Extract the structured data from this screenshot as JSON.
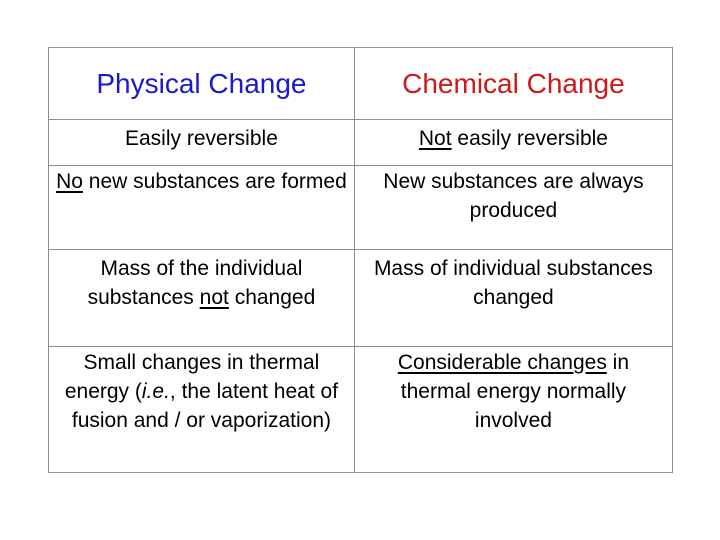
{
  "colors": {
    "physical_heading": "#1a1ac8",
    "chemical_heading": "#cc1a1a",
    "border": "#8c8c8c"
  },
  "headers": {
    "physical": "Physical Change",
    "chemical": "Chemical Change"
  },
  "rows": [
    {
      "physical": {
        "parts": [
          "Easily reversible"
        ]
      },
      "chemical": {
        "underlined": "Not",
        "rest": " easily reversible"
      }
    },
    {
      "physical": {
        "underlined": "No",
        "rest": " new substances are formed"
      },
      "chemical": {
        "parts": [
          "New substances are always produced"
        ]
      }
    },
    {
      "physical": {
        "before": "Mass of the individual substances ",
        "underlined": "not",
        "after": " changed"
      },
      "chemical": {
        "parts": [
          "Mass of individual substances changed"
        ]
      }
    },
    {
      "physical": {
        "before": "Small changes in thermal energy (",
        "italic": "i.e.",
        "after": ", the  latent heat of fusion and / or vaporization)"
      },
      "chemical": {
        "underlined": "Considerable changes",
        "rest": " in thermal energy normally involved"
      }
    }
  ]
}
